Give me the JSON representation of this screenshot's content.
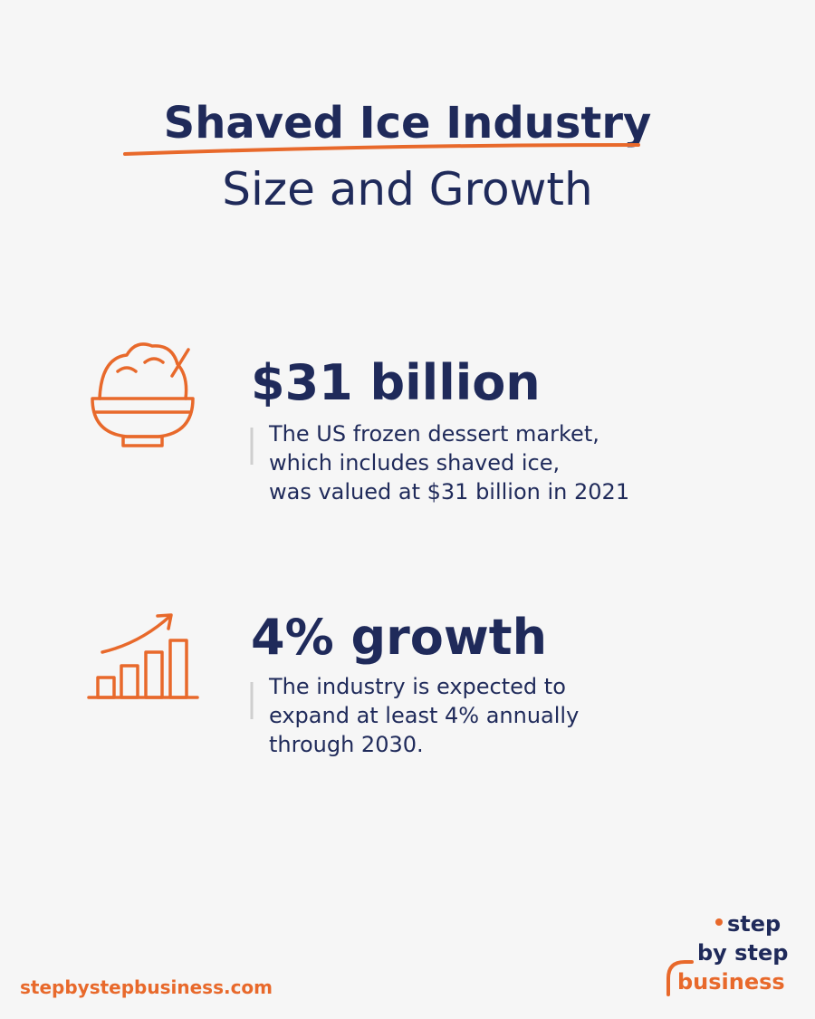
{
  "header": {
    "title": "Shaved Ice Industry",
    "subtitle": "Size and Growth"
  },
  "stats": [
    {
      "headline": "$31 billion",
      "lines": [
        "The US frozen dessert market,",
        "which includes shaved ice,",
        "was valued at $31 billion in 2021"
      ]
    },
    {
      "headline": "4% growth",
      "lines": [
        "The industry is expected to",
        "expand at least 4% annually",
        "through 2030."
      ]
    }
  ],
  "footer": {
    "url": "stepbystepbusiness.com",
    "logo": [
      "step",
      "by step",
      "business"
    ]
  }
}
